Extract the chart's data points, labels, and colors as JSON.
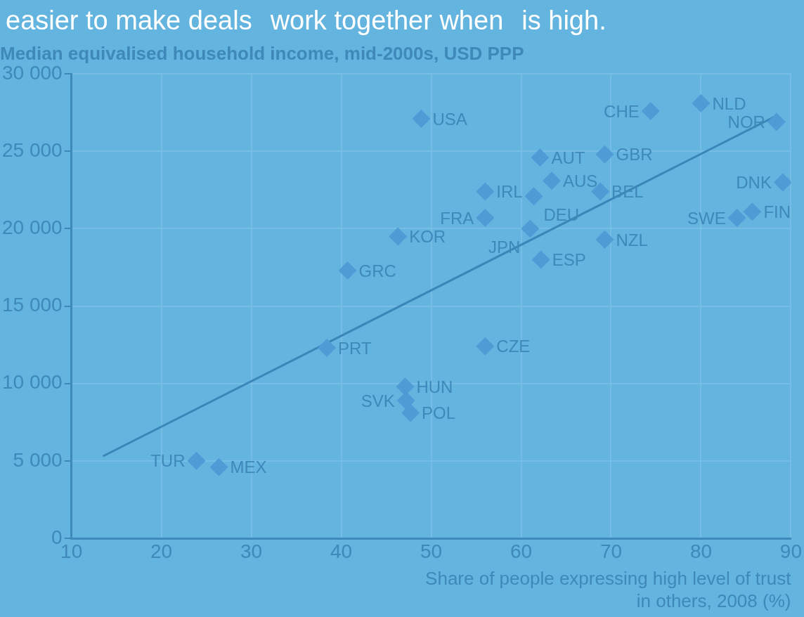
{
  "chart_data": {
    "type": "scatter",
    "title": "Median equivalised household income, mid-2000s, USD PPP",
    "xlabel": "Share of people expressing high level of trust in others, 2008 (%)",
    "xlim": [
      10,
      90
    ],
    "xticks": [
      10,
      20,
      30,
      40,
      50,
      60,
      70,
      80,
      90
    ],
    "ylim": [
      0,
      30000
    ],
    "yticks": [
      {
        "value": 0,
        "label": "0"
      },
      {
        "value": 5000,
        "label": "5 000"
      },
      {
        "value": 10000,
        "label": "10 000"
      },
      {
        "value": 15000,
        "label": "15 000"
      },
      {
        "value": 20000,
        "label": "20 000"
      },
      {
        "value": 25000,
        "label": "25 000"
      },
      {
        "value": 30000,
        "label": "30 000"
      }
    ],
    "grid": true,
    "legend": false,
    "marker": "diamond",
    "series": [
      {
        "type": "scatter",
        "color": "#4f9bd6",
        "x": [
          48.9,
          63.4,
          62.1,
          74.4,
          80,
          88.4,
          69.3,
          68.8,
          61.4,
          56,
          56,
          61,
          46.3,
          40.7,
          62.2,
          69.3,
          84,
          85.7,
          89.1,
          38.4,
          56,
          47.1,
          47.2,
          47.7,
          23.9,
          26.4
        ],
        "values": [
          27100,
          23100,
          24600,
          27600,
          28100,
          26900,
          24800,
          22400,
          22100,
          22400,
          20700,
          20000,
          19500,
          17300,
          18000,
          19300,
          20700,
          21100,
          23000,
          12300,
          12400,
          9800,
          8900,
          8100,
          5000,
          4600
        ],
        "value_labels": [
          "USA",
          "AUS",
          "AUT",
          "CHE",
          "NLD",
          "NOR",
          "GBR",
          "BEL",
          "DEU",
          "IRL",
          "FRA",
          "JPN",
          "KOR",
          "GRC",
          "ESP",
          "NZL",
          "SWE",
          "FIN",
          "DNK",
          "PRT",
          "CZE",
          "HUN",
          "SVK",
          "POL",
          "TUR",
          "MEX"
        ]
      },
      {
        "type": "line",
        "color": "#3a86b8",
        "x": [
          13.5,
          88.4
        ],
        "values": [
          5300,
          27300
        ],
        "marker": "none"
      }
    ],
    "annotations": [
      "easier to make deals",
      "work together when",
      "is high."
    ]
  }
}
